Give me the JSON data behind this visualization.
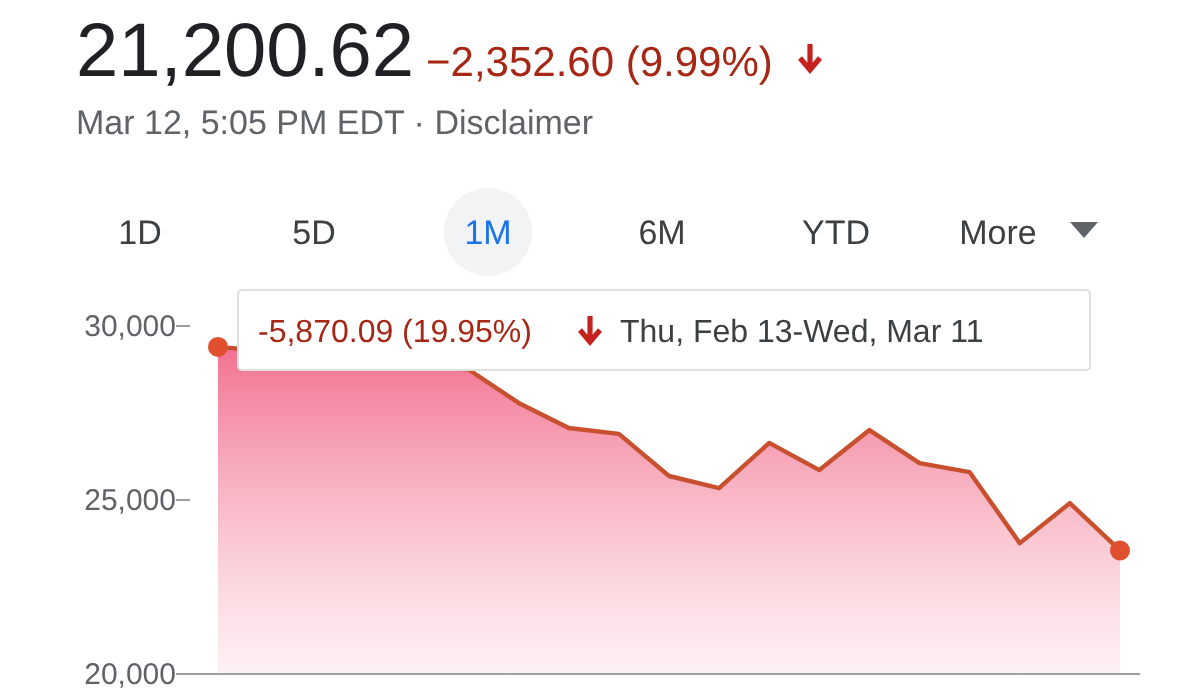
{
  "chart_data": {
    "type": "area",
    "title": "21,200.62",
    "subtitle": "Mar 12, 5:05 PM EDT · Disclaimer",
    "annotations": [
      "−2,352.60 (9.99%)",
      "-5,870.09 (19.95%)",
      "Thu, Feb 13-Wed, Mar 11",
      "1D",
      "5D",
      "1M",
      "6M",
      "YTD",
      "More"
    ],
    "categories": [
      null,
      null,
      null,
      null,
      null,
      null,
      null,
      null,
      null,
      null,
      null,
      null,
      null,
      null,
      null,
      null,
      null,
      null,
      null
    ],
    "series": [
      {
        "color": "#c8502e",
        "values": [
          29400,
          null,
          null,
          null,
          null,
          28750,
          27790,
          27070,
          26900,
          25690,
          25340,
          26640,
          25860,
          27010,
          26060,
          25800,
          23760,
          24910,
          23550
        ]
      },
      {
        "type": "scatter",
        "color": "#e0502e",
        "values": [
          29400,
          null,
          null,
          null,
          null,
          null,
          null,
          null,
          null,
          null,
          null,
          null,
          null,
          null,
          null,
          null,
          null,
          null,
          23550
        ]
      }
    ],
    "ylim": [
      20000,
      30000
    ],
    "yticks": [
      {
        "value": 20000,
        "label": "20,000"
      },
      {
        "value": 25000,
        "label": "25,000"
      },
      {
        "value": 30000,
        "label": "30,000"
      }
    ]
  }
}
